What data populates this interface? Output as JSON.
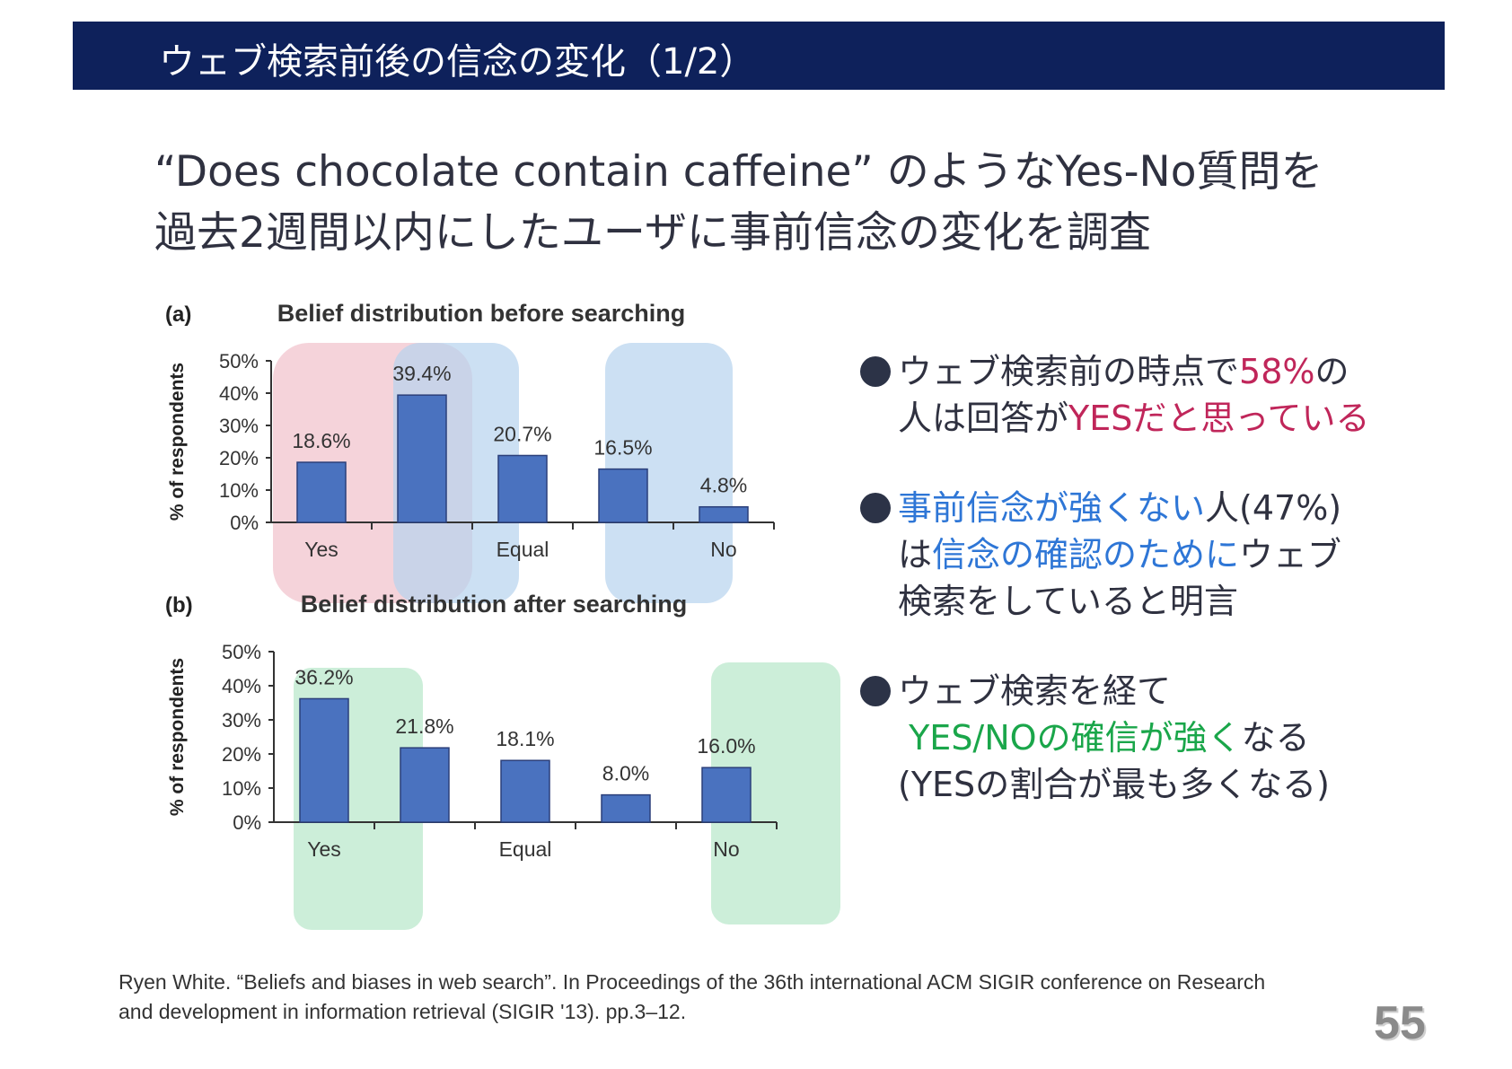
{
  "title": "ウェブ検索前後の信念の変化（1/2）",
  "heading": {
    "line1": "“Does chocolate contain caffeine” のようなYes-No質問を",
    "line2": "過去2週間以内にしたユーザに事前信念の変化を調査"
  },
  "bullets": [
    {
      "line1_a": "ウェブ検索前の時点で",
      "line1_b": "58%",
      "line1_c": "の",
      "line2_a": "人は回答が",
      "line2_b": "YESだと思っている"
    },
    {
      "line1_a": "事前信念が強くない",
      "line1_b": "人(47%)",
      "line2_a": "は",
      "line2_b": "信念の確認のために",
      "line2_c": "ウェブ",
      "line3": "検索をしていると明言"
    },
    {
      "line1": "ウェブ検索を経て",
      "line2_a": "YES/NOの確信が強く",
      "line2_b": "なる",
      "line3": "(YESの割合が最も多くなる)"
    }
  ],
  "citation": {
    "line1": "Ryen White. “Beliefs and biases in web search”. In Proceedings of the 36th international ACM SIGIR conference on Research",
    "line2": "and development in information retrieval (SIGIR '13). pp.3–12."
  },
  "page_number": "55",
  "colors": {
    "title_bar": "#0e215b",
    "bar_before": "#4a72bf",
    "bar_after": "#4a72bf",
    "highlight_red": "#c0265a",
    "highlight_blue": "#2e76d6",
    "highlight_green": "#1aa64a"
  },
  "chart_data": [
    {
      "type": "bar",
      "panel_label": "(a)",
      "title": "Belief distribution before searching",
      "ylabel": "% of respondents",
      "yticks": [
        "0%",
        "10%",
        "20%",
        "30%",
        "40%",
        "50%"
      ],
      "ylim": [
        0,
        50
      ],
      "categories": [
        "Yes",
        "",
        "Equal",
        "",
        "No"
      ],
      "values": [
        18.6,
        39.4,
        20.7,
        16.5,
        4.8
      ],
      "value_labels": [
        "18.6%",
        "39.4%",
        "20.7%",
        "16.5%",
        "4.8%"
      ]
    },
    {
      "type": "bar",
      "panel_label": "(b)",
      "title": "Belief distribution after searching",
      "ylabel": "% of respondents",
      "yticks": [
        "0%",
        "10%",
        "20%",
        "30%",
        "40%",
        "50%"
      ],
      "ylim": [
        0,
        50
      ],
      "categories": [
        "Yes",
        "",
        "Equal",
        "",
        "No"
      ],
      "values": [
        36.2,
        21.8,
        18.1,
        8.0,
        16.0
      ],
      "value_labels": [
        "36.2%",
        "21.8%",
        "18.1%",
        "8.0%",
        "16.0%"
      ]
    }
  ]
}
